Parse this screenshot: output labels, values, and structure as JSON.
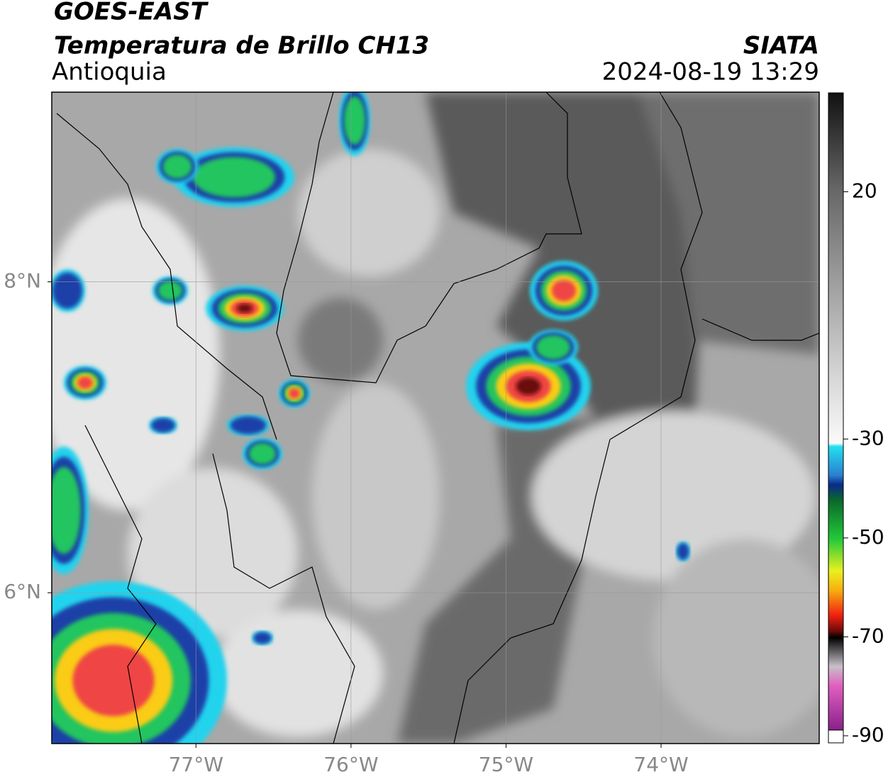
{
  "header": {
    "satellite": "GOES-EAST",
    "product": "Temperatura de Brillo CH13",
    "region": "Antioquia",
    "source": "SIATA",
    "datetime": "2024-08-19 13:29"
  },
  "map": {
    "xlim": [
      -77.93,
      -72.98
    ],
    "ylim": [
      5.03,
      9.22
    ],
    "xticks": [
      {
        "value": -77,
        "label": "77°W"
      },
      {
        "value": -76,
        "label": "76°W"
      },
      {
        "value": -75,
        "label": "75°W"
      },
      {
        "value": -74,
        "label": "74°W"
      }
    ],
    "yticks": [
      {
        "value": 6,
        "label": "6°N"
      },
      {
        "value": 8,
        "label": "8°N"
      }
    ],
    "grid": true
  },
  "colorbar": {
    "range": [
      -90,
      40
    ],
    "ticks": [
      20,
      -30,
      -50,
      -70,
      -90
    ]
  }
}
